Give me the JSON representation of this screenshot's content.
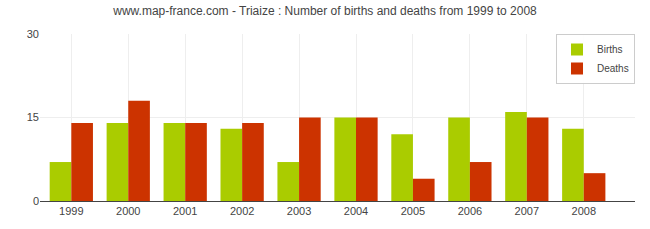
{
  "chart_data": {
    "type": "bar",
    "title": "www.map-france.com - Triaize : Number of births and deaths from 1999 to 2008",
    "x": [
      1999,
      2000,
      2001,
      2002,
      2003,
      2004,
      2005,
      2006,
      2007,
      2008
    ],
    "series": [
      {
        "name": "Births",
        "color": "#aacc00",
        "values": [
          7,
          14,
          14,
          13,
          7,
          15,
          12,
          15,
          16,
          13
        ]
      },
      {
        "name": "Deaths",
        "color": "#cc3300",
        "values": [
          14,
          18,
          14,
          14,
          15,
          15,
          4,
          7,
          15,
          5
        ]
      }
    ],
    "xlim": [
      1998.45,
      2008.9
    ],
    "xticks": [
      1999,
      2000,
      2001,
      2002,
      2003,
      2004,
      2005,
      2006,
      2007,
      2008
    ],
    "ylim": [
      0,
      30
    ],
    "yticks": [
      0,
      15,
      30
    ],
    "grid": true,
    "legend": "upper right"
  }
}
